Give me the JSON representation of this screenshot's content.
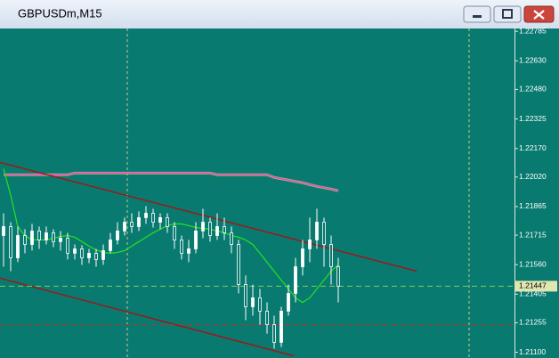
{
  "window_title": "GBPUSDm,M15",
  "chart_data": {
    "type": "candlestick",
    "xlim": [
      -0.5,
      71.75
    ],
    "ylim": [
      1.2107,
      1.228
    ],
    "yticks": [
      1.22785,
      {
        "value": 1.2263,
        "label": "1.22630"
      },
      {
        "value": 1.2248,
        "label": "1.22480"
      },
      1.22325,
      {
        "value": 1.2217,
        "label": "1.22170"
      },
      {
        "value": 1.2202,
        "label": "1.22020"
      },
      1.21865,
      1.21715,
      {
        "value": 1.2156,
        "label": "1.21560"
      },
      1.21405,
      1.21255,
      {
        "value": 1.211,
        "label": "1.21100"
      }
    ],
    "candle_color": "#ffffff",
    "open": [
      1.21713,
      1.2176,
      1.21596,
      1.21713,
      1.21666,
      1.21737,
      1.2169,
      1.21727,
      1.21681,
      1.21699,
      1.2162,
      1.21643,
      1.21596,
      1.2162,
      1.21587,
      1.21634,
      1.2169,
      1.21737,
      1.21783,
      1.2176,
      1.21807,
      1.2183,
      1.21783,
      1.21807,
      1.2176,
      1.2169,
      1.2162,
      1.21643,
      1.21737,
      1.21783,
      1.21713,
      1.2176,
      1.21727,
      1.21666,
      1.21456,
      1.21339,
      1.21386,
      1.21316,
      1.21245,
      1.21152,
      1.21316,
      1.21409,
      1.21549,
      1.21643,
      1.2169,
      1.21783,
      1.21666,
      1.21549
    ],
    "high": [
      1.2183,
      1.21783,
      1.2176,
      1.21746,
      1.21774,
      1.2176,
      1.2176,
      1.21746,
      1.21737,
      1.21727,
      1.21666,
      1.21662,
      1.21643,
      1.21643,
      1.21666,
      1.21727,
      1.21783,
      1.21807,
      1.2183,
      1.2184,
      1.21868,
      1.21854,
      1.2183,
      1.2183,
      1.21783,
      1.21713,
      1.2169,
      1.21783,
      1.21854,
      1.21807,
      1.2183,
      1.21807,
      1.2176,
      1.2169,
      1.21503,
      1.21456,
      1.21433,
      1.21362,
      1.21292,
      1.21339,
      1.21456,
      1.21596,
      1.2169,
      1.21807,
      1.21854,
      1.21807,
      1.21713,
      1.21596
    ],
    "low": [
      1.21549,
      1.21526,
      1.21573,
      1.2162,
      1.21634,
      1.21643,
      1.21666,
      1.21652,
      1.21634,
      1.21587,
      1.21587,
      1.21559,
      1.21568,
      1.21549,
      1.21559,
      1.2162,
      1.21666,
      1.21713,
      1.21727,
      1.21737,
      1.21774,
      1.21755,
      1.21746,
      1.21727,
      1.21643,
      1.21587,
      1.21573,
      1.2162,
      1.21699,
      1.21681,
      1.2169,
      1.2169,
      1.2162,
      1.21409,
      1.21269,
      1.21292,
      1.21245,
      1.21198,
      1.21119,
      1.21128,
      1.21292,
      1.21362,
      1.21503,
      1.21573,
      1.21643,
      1.21549,
      1.21456,
      1.21362
    ],
    "close": [
      1.2176,
      1.21596,
      1.21713,
      1.21666,
      1.21737,
      1.2169,
      1.21727,
      1.21681,
      1.21699,
      1.2162,
      1.21643,
      1.21596,
      1.2162,
      1.21587,
      1.21634,
      1.2169,
      1.21737,
      1.21783,
      1.2176,
      1.21807,
      1.2183,
      1.21783,
      1.21807,
      1.2176,
      1.2169,
      1.2162,
      1.21643,
      1.21737,
      1.21783,
      1.21713,
      1.2176,
      1.21727,
      1.21666,
      1.21456,
      1.21339,
      1.21386,
      1.21316,
      1.21245,
      1.21152,
      1.21316,
      1.21409,
      1.21549,
      1.21643,
      1.2169,
      1.21783,
      1.21666,
      1.21549,
      1.21447
    ],
    "lines": [
      {
        "color": "#ff33ff",
        "values": [
          1.22032,
          1.22032,
          1.22032,
          1.22032,
          1.22032,
          1.22032,
          1.22032,
          1.22032,
          1.22032,
          1.22032,
          1.22041,
          1.22041,
          1.22041,
          1.22041,
          1.22041,
          1.22041,
          1.22041,
          1.22041,
          1.22041,
          1.22041,
          1.22041,
          1.22041,
          1.22041,
          1.22041,
          1.22041,
          1.22041,
          1.22041,
          1.22041,
          1.22041,
          1.22041,
          1.22032,
          1.22032,
          1.22032,
          1.22032,
          1.22032,
          1.22032,
          1.22032,
          1.22032,
          1.22018,
          1.22011,
          1.22004,
          1.21997,
          1.2199,
          1.2198,
          1.21971,
          1.21964,
          1.21957,
          1.21948
        ]
      },
      {
        "color": "#22dd22",
        "values": [
          1.22064,
          1.21924,
          1.2176,
          1.21713,
          1.2169,
          1.2169,
          1.2169,
          1.21699,
          1.21708,
          1.21713,
          1.21704,
          1.21681,
          1.21657,
          1.21638,
          1.21624,
          1.2162,
          1.21624,
          1.21634,
          1.21657,
          1.21681,
          1.21704,
          1.21727,
          1.21746,
          1.21765,
          1.21774,
          1.21774,
          1.21765,
          1.21755,
          1.21751,
          1.21746,
          1.21737,
          1.21727,
          1.21713,
          1.21704,
          1.2169,
          1.21666,
          1.2162,
          1.21573,
          1.21526,
          1.21479,
          1.21433,
          1.21386,
          1.21362,
          1.21386,
          1.21433,
          1.21479,
          1.21526,
          1.21559
        ]
      }
    ],
    "trendlines": [
      {
        "color": "#a01818",
        "x": [
          -0.5,
          58
        ],
        "y": [
          1.22097,
          1.21526
        ]
      },
      {
        "color": "#a01818",
        "x": [
          -0.5,
          40.75
        ],
        "y": [
          1.21489,
          1.21081
        ]
      }
    ],
    "hlines": [
      {
        "value": 1.21447,
        "color": "#7ccf5a"
      },
      {
        "value": 1.21245,
        "color": "#c03030"
      }
    ]
  }
}
